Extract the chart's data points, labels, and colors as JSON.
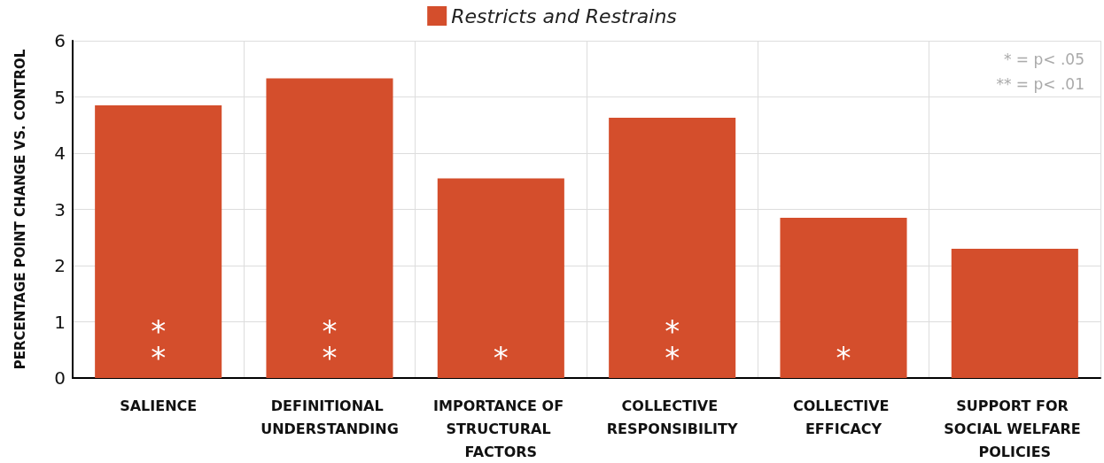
{
  "chart_data": {
    "type": "bar",
    "ylabel": "PERCENTAGE POINT CHANGE VS. CONTROL",
    "categories": [
      "SALIENCE",
      "DEFINITIONAL UNDERSTANDING",
      "IMPORTANCE OF STRUCTURAL FACTORS",
      "COLLECTIVE RESPONSIBILITY",
      "COLLECTIVE EFFICACY",
      "SUPPORT FOR SOCIAL WELFARE POLICIES"
    ],
    "series": [
      {
        "name": "Restricts and Restrains",
        "color": "#d44e2c",
        "values": [
          4.85,
          5.33,
          3.55,
          4.63,
          2.85,
          2.3
        ],
        "value_labels": [
          "**",
          "**",
          "*",
          "**",
          "*",
          null
        ]
      }
    ],
    "ylim": [
      0,
      6
    ],
    "yticks": [
      0,
      1,
      2,
      3,
      4,
      5,
      6
    ],
    "grid": true,
    "legend": "top",
    "annotations": [
      "* = p< .05",
      "** = p< .01"
    ]
  }
}
